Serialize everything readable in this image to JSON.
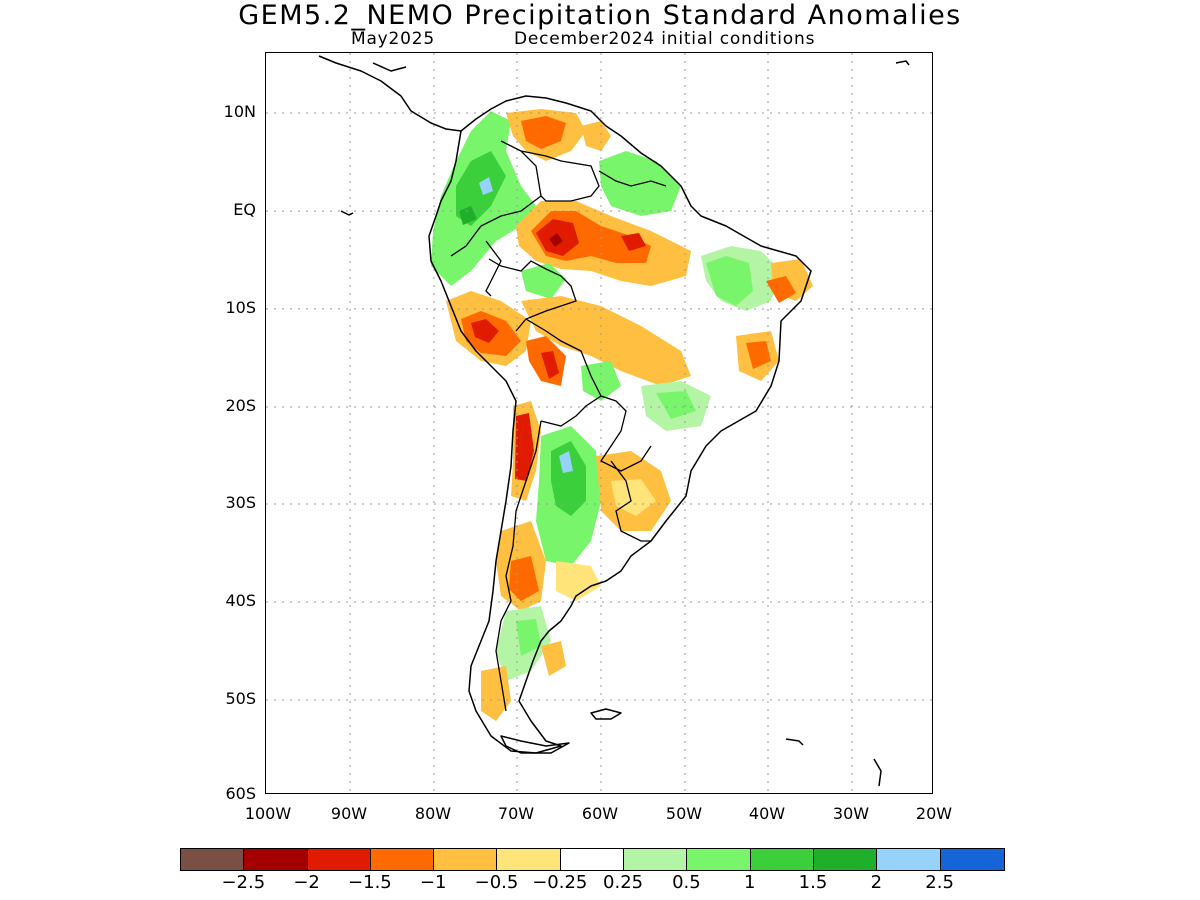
{
  "title": "GEM5.2_NEMO Precipitation Standard Anomalies",
  "subtitle_month": "May2025",
  "subtitle_init": "December2024 initial conditions",
  "map": {
    "lon_range": [
      -100,
      -20
    ],
    "lat_range": [
      -60,
      16
    ],
    "lat_labels": [
      "10N",
      "EQ",
      "10S",
      "20S",
      "30S",
      "40S",
      "50S",
      "60S"
    ],
    "lon_labels": [
      "100W",
      "90W",
      "80W",
      "70W",
      "60W",
      "50W",
      "40W",
      "30W",
      "20W"
    ],
    "gridlines": "dotted"
  },
  "colorbar": {
    "colors": [
      "#7a5044",
      "#a50000",
      "#e01b00",
      "#ff6a00",
      "#ffbf40",
      "#ffe47a",
      "#ffffff",
      "#b4f5a5",
      "#78f56a",
      "#3ccf3c",
      "#1faf2a",
      "#96d2fa",
      "#1565d8"
    ],
    "labels": [
      "−2.5",
      "−2",
      "−1.5",
      "−1",
      "−0.5",
      "−0.25",
      "0.25",
      "0.5",
      "1",
      "1.5",
      "2",
      "2.5"
    ]
  }
}
